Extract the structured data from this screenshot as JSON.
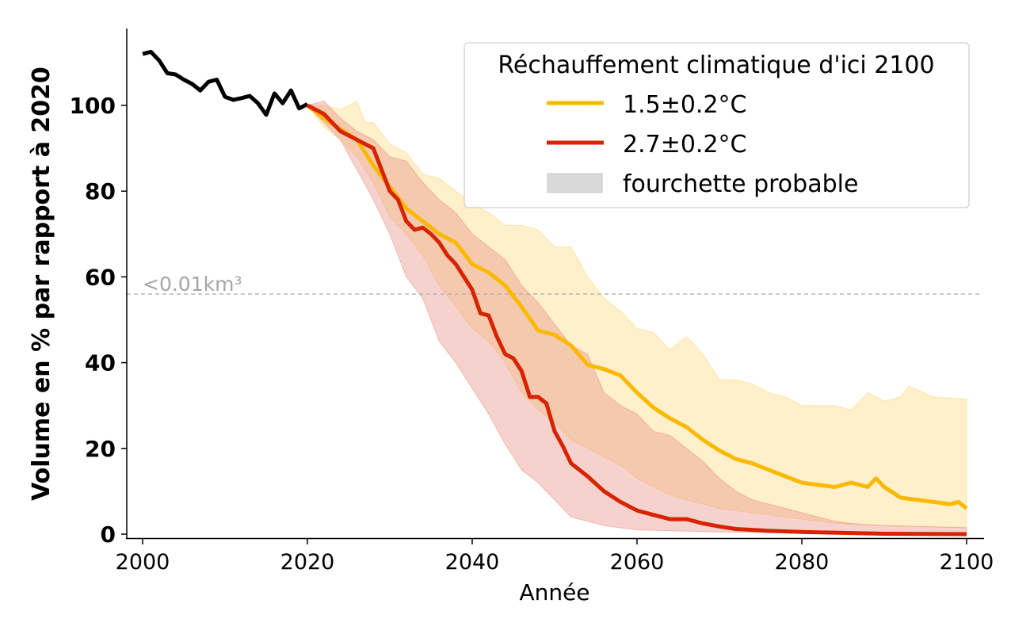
{
  "chart_data": {
    "type": "line",
    "xlabel": "Année",
    "ylabel": "Volume en % par rapport à 2020",
    "xlim": [
      1998,
      2102
    ],
    "ylim": [
      -1,
      118
    ],
    "xticks": [
      2000,
      2020,
      2040,
      2060,
      2080,
      2100
    ],
    "yticks": [
      0,
      20,
      40,
      60,
      80,
      100
    ],
    "grid": false,
    "legend": {
      "title": "Réchauffement climatique d'ici 2100",
      "placement": "top-right",
      "entries": [
        {
          "label": "1.5±0.2°C",
          "color": "#FBB800",
          "kind": "line"
        },
        {
          "label": "2.7±0.2°C",
          "color": "#D62400",
          "kind": "line"
        },
        {
          "label": "fourchette probable",
          "color": "#D9D9D9",
          "kind": "patch"
        }
      ]
    },
    "reference_line": {
      "y": 56,
      "label": "<0.01km³",
      "color": "#B0B0B0"
    },
    "historical": {
      "color": "#000000",
      "points": [
        [
          2000,
          112
        ],
        [
          2001,
          112.5
        ],
        [
          2002,
          110.5
        ],
        [
          2003,
          107.5
        ],
        [
          2004,
          107.2
        ],
        [
          2005,
          106
        ],
        [
          2006,
          105
        ],
        [
          2007,
          103.5
        ],
        [
          2008,
          105.5
        ],
        [
          2009,
          106
        ],
        [
          2010,
          102
        ],
        [
          2011,
          101.3
        ],
        [
          2012,
          101.7
        ],
        [
          2013,
          102.2
        ],
        [
          2014,
          100.5
        ],
        [
          2015,
          97.8
        ],
        [
          2016,
          102.8
        ],
        [
          2017,
          100.5
        ],
        [
          2018,
          103.5
        ],
        [
          2019,
          99.3
        ],
        [
          2020,
          100.3
        ]
      ]
    },
    "series": [
      {
        "name": "1.5±0.2°C",
        "color": "#FBB800",
        "band_color": "#FDD36B",
        "points": [
          [
            2020,
            100
          ],
          [
            2022,
            97
          ],
          [
            2024,
            94.5
          ],
          [
            2026,
            92
          ],
          [
            2028,
            86
          ],
          [
            2030,
            81
          ],
          [
            2032,
            76
          ],
          [
            2034,
            73
          ],
          [
            2036,
            70
          ],
          [
            2038,
            68
          ],
          [
            2040,
            63
          ],
          [
            2042,
            61
          ],
          [
            2044,
            58
          ],
          [
            2046,
            53
          ],
          [
            2048,
            47.5
          ],
          [
            2050,
            46.5
          ],
          [
            2052,
            44
          ],
          [
            2054,
            39.5
          ],
          [
            2056,
            38.5
          ],
          [
            2058,
            37
          ],
          [
            2060,
            33
          ],
          [
            2062,
            29.5
          ],
          [
            2064,
            27
          ],
          [
            2066,
            25
          ],
          [
            2068,
            22
          ],
          [
            2070,
            19.5
          ],
          [
            2072,
            17.5
          ],
          [
            2074,
            16.5
          ],
          [
            2076,
            15
          ],
          [
            2078,
            13.5
          ],
          [
            2080,
            12
          ],
          [
            2082,
            11.5
          ],
          [
            2084,
            11
          ],
          [
            2086,
            12
          ],
          [
            2088,
            11
          ],
          [
            2089,
            13
          ],
          [
            2090,
            11
          ],
          [
            2092,
            8.5
          ],
          [
            2094,
            8
          ],
          [
            2096,
            7.5
          ],
          [
            2098,
            7
          ],
          [
            2099,
            7.5
          ],
          [
            2100,
            6
          ]
        ],
        "upper": [
          [
            2020,
            100
          ],
          [
            2022,
            100
          ],
          [
            2024,
            99
          ],
          [
            2026,
            101
          ],
          [
            2027,
            96
          ],
          [
            2028,
            96
          ],
          [
            2030,
            91
          ],
          [
            2032,
            89
          ],
          [
            2034,
            84
          ],
          [
            2036,
            83
          ],
          [
            2038,
            80
          ],
          [
            2040,
            77
          ],
          [
            2042,
            75
          ],
          [
            2044,
            72
          ],
          [
            2046,
            72
          ],
          [
            2048,
            71
          ],
          [
            2050,
            67
          ],
          [
            2052,
            67
          ],
          [
            2054,
            60
          ],
          [
            2056,
            55
          ],
          [
            2058,
            52
          ],
          [
            2060,
            48
          ],
          [
            2062,
            47
          ],
          [
            2064,
            43
          ],
          [
            2066,
            46
          ],
          [
            2068,
            42
          ],
          [
            2070,
            36
          ],
          [
            2072,
            36
          ],
          [
            2074,
            35
          ],
          [
            2076,
            33
          ],
          [
            2078,
            32
          ],
          [
            2080,
            30
          ],
          [
            2082,
            30
          ],
          [
            2084,
            30
          ],
          [
            2086,
            29
          ],
          [
            2088,
            33
          ],
          [
            2090,
            31
          ],
          [
            2092,
            32
          ],
          [
            2093,
            34.5
          ],
          [
            2096,
            32
          ],
          [
            2100,
            31.5
          ]
        ],
        "lower": [
          [
            2020,
            100
          ],
          [
            2022,
            95
          ],
          [
            2024,
            92
          ],
          [
            2026,
            88
          ],
          [
            2028,
            82
          ],
          [
            2030,
            74
          ],
          [
            2032,
            70
          ],
          [
            2034,
            65
          ],
          [
            2036,
            58
          ],
          [
            2038,
            53
          ],
          [
            2040,
            48
          ],
          [
            2042,
            45
          ],
          [
            2044,
            40
          ],
          [
            2046,
            33
          ],
          [
            2048,
            29
          ],
          [
            2050,
            26
          ],
          [
            2052,
            22
          ],
          [
            2054,
            20
          ],
          [
            2056,
            18
          ],
          [
            2058,
            16
          ],
          [
            2060,
            13
          ],
          [
            2062,
            11
          ],
          [
            2064,
            9
          ],
          [
            2066,
            8
          ],
          [
            2068,
            7
          ],
          [
            2070,
            6
          ],
          [
            2074,
            5
          ],
          [
            2078,
            4
          ],
          [
            2082,
            3
          ],
          [
            2084,
            2.5
          ],
          [
            2090,
            2
          ],
          [
            2100,
            1.5
          ]
        ]
      },
      {
        "name": "2.7±0.2°C",
        "color": "#D62400",
        "band_color": "#E88A7E",
        "points": [
          [
            2020,
            100
          ],
          [
            2022,
            98
          ],
          [
            2024,
            94
          ],
          [
            2026,
            92
          ],
          [
            2028,
            90
          ],
          [
            2030,
            80
          ],
          [
            2031,
            78
          ],
          [
            2032,
            73
          ],
          [
            2033,
            71
          ],
          [
            2034,
            71.5
          ],
          [
            2035,
            70
          ],
          [
            2036,
            68
          ],
          [
            2037,
            65
          ],
          [
            2038,
            63
          ],
          [
            2039,
            60
          ],
          [
            2040,
            57
          ],
          [
            2041,
            51.5
          ],
          [
            2042,
            51
          ],
          [
            2043,
            46
          ],
          [
            2044,
            42
          ],
          [
            2045,
            41
          ],
          [
            2046,
            38
          ],
          [
            2047,
            32
          ],
          [
            2048,
            32
          ],
          [
            2049,
            30.5
          ],
          [
            2050,
            24
          ],
          [
            2051,
            20.5
          ],
          [
            2052,
            16.5
          ],
          [
            2054,
            13.5
          ],
          [
            2056,
            10
          ],
          [
            2058,
            7.5
          ],
          [
            2060,
            5.5
          ],
          [
            2062,
            4.5
          ],
          [
            2064,
            3.5
          ],
          [
            2066,
            3.5
          ],
          [
            2068,
            2.5
          ],
          [
            2070,
            1.8
          ],
          [
            2072,
            1.2
          ],
          [
            2076,
            0.8
          ],
          [
            2080,
            0.5
          ],
          [
            2085,
            0.3
          ],
          [
            2090,
            0.1
          ],
          [
            2100,
            0
          ]
        ],
        "upper": [
          [
            2020,
            100
          ],
          [
            2022,
            101
          ],
          [
            2024,
            97
          ],
          [
            2026,
            94
          ],
          [
            2028,
            92
          ],
          [
            2030,
            88
          ],
          [
            2032,
            87
          ],
          [
            2034,
            82
          ],
          [
            2036,
            78
          ],
          [
            2038,
            75
          ],
          [
            2040,
            70
          ],
          [
            2042,
            67
          ],
          [
            2044,
            64
          ],
          [
            2046,
            58
          ],
          [
            2048,
            54
          ],
          [
            2050,
            49
          ],
          [
            2052,
            44
          ],
          [
            2054,
            42
          ],
          [
            2056,
            33
          ],
          [
            2058,
            30
          ],
          [
            2060,
            28
          ],
          [
            2062,
            24
          ],
          [
            2064,
            23
          ],
          [
            2066,
            20
          ],
          [
            2068,
            17
          ],
          [
            2070,
            13
          ],
          [
            2072,
            10
          ],
          [
            2074,
            8
          ],
          [
            2076,
            7
          ],
          [
            2078,
            6
          ],
          [
            2080,
            5
          ],
          [
            2082,
            4
          ],
          [
            2084,
            3
          ],
          [
            2086,
            2.5
          ],
          [
            2090,
            2
          ],
          [
            2100,
            1.5
          ]
        ],
        "lower": [
          [
            2020,
            100
          ],
          [
            2022,
            96
          ],
          [
            2024,
            92
          ],
          [
            2026,
            85
          ],
          [
            2028,
            78
          ],
          [
            2030,
            70
          ],
          [
            2032,
            60
          ],
          [
            2034,
            55
          ],
          [
            2036,
            45
          ],
          [
            2038,
            40
          ],
          [
            2040,
            34
          ],
          [
            2042,
            28
          ],
          [
            2044,
            21
          ],
          [
            2046,
            15
          ],
          [
            2048,
            12
          ],
          [
            2050,
            8
          ],
          [
            2052,
            4
          ],
          [
            2054,
            3
          ],
          [
            2056,
            2
          ],
          [
            2060,
            1
          ],
          [
            2070,
            0.5
          ],
          [
            2080,
            0.2
          ],
          [
            2100,
            0
          ]
        ]
      }
    ]
  }
}
